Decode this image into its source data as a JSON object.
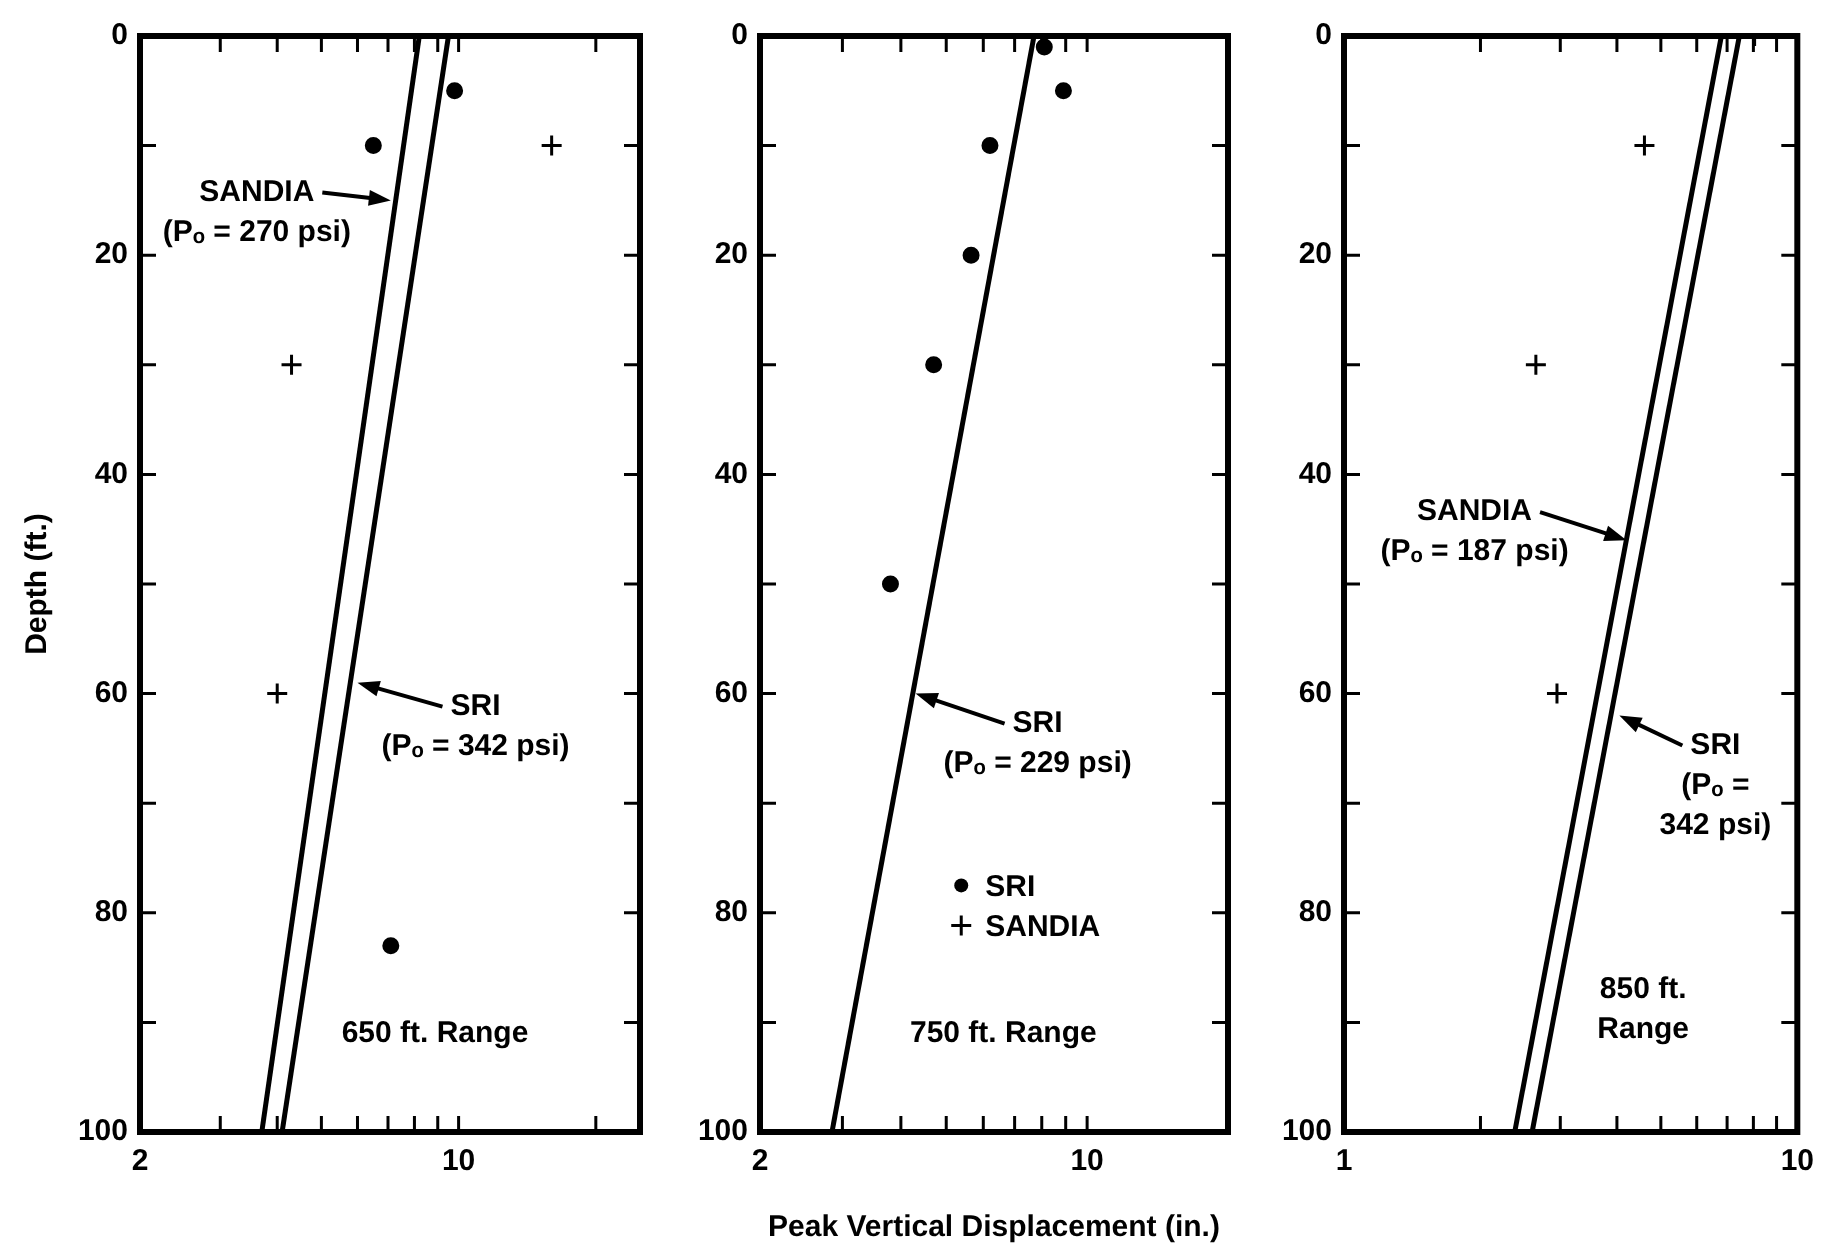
{
  "chart_data": [
    {
      "type": "line",
      "ylabel": "Depth (ft.)",
      "log": "x",
      "xlim": [
        2,
        25
      ],
      "xticks": [
        2,
        {
          "value": 3,
          "label": null
        },
        {
          "value": 4,
          "label": null
        },
        {
          "value": 5,
          "label": null
        },
        {
          "value": 6,
          "label": null
        },
        {
          "value": 7,
          "label": null
        },
        {
          "value": 8,
          "label": null
        },
        {
          "value": 9,
          "label": null
        },
        10,
        {
          "value": 20,
          "label": null
        }
      ],
      "ylim": [
        100,
        0
      ],
      "yticks": [
        0,
        {
          "value": 10,
          "label": null
        },
        20,
        {
          "value": 30,
          "label": null
        },
        40,
        {
          "value": 50,
          "label": null
        },
        60,
        {
          "value": 70,
          "label": null
        },
        80,
        {
          "value": 90,
          "label": null
        },
        100
      ],
      "series": [
        {
          "type": "line",
          "color": "#000000",
          "x": [
            8.2,
            3.7
          ],
          "values": [
            0,
            100
          ],
          "marker": "none"
        },
        {
          "type": "line",
          "color": "#000000",
          "x": [
            9.5,
            4.1
          ],
          "values": [
            0,
            100
          ],
          "marker": "none"
        },
        {
          "type": "scatter",
          "color": "#000000",
          "x": [
            9.8,
            6.5,
            7.1
          ],
          "values": [
            5,
            10,
            83
          ],
          "marker": "circle"
        },
        {
          "type": "scatter",
          "color": "#000000",
          "x": [
            16,
            4.3,
            4.0
          ],
          "values": [
            10,
            30,
            60
          ],
          "marker": "cross"
        }
      ],
      "annotations": [
        {
          "text": "SANDIA\n(Pₒ = 270 psi)",
          "x": 7.1,
          "y": 15
        },
        {
          "text": "SRI\n(Pₒ = 342 psi)",
          "x": 6.0,
          "y": 59
        },
        "650 ft. Range"
      ]
    },
    {
      "type": "line",
      "xlabel": "Peak Vertical Displacement (in.)",
      "log": "x",
      "legend": "bottom",
      "xlim": [
        2,
        20
      ],
      "xticks": [
        2,
        {
          "value": 3,
          "label": null
        },
        {
          "value": 4,
          "label": null
        },
        {
          "value": 5,
          "label": null
        },
        {
          "value": 6,
          "label": null
        },
        {
          "value": 7,
          "label": null
        },
        {
          "value": 8,
          "label": null
        },
        {
          "value": 9,
          "label": null
        },
        10
      ],
      "ylim": [
        100,
        0
      ],
      "yticks": [
        0,
        {
          "value": 10,
          "label": null
        },
        20,
        {
          "value": 30,
          "label": null
        },
        40,
        {
          "value": 50,
          "label": null
        },
        60,
        {
          "value": 70,
          "label": null
        },
        80,
        {
          "value": 90,
          "label": null
        },
        100
      ],
      "series": [
        {
          "type": "line",
          "color": "#000000",
          "x": [
            7.7,
            2.85
          ],
          "values": [
            0,
            100
          ],
          "marker": "none"
        },
        {
          "type": "scatter",
          "name": "SRI",
          "color": "#000000",
          "x": [
            8.1,
            8.9,
            6.2,
            5.65,
            4.7,
            3.8
          ],
          "values": [
            1,
            5,
            10,
            20,
            30,
            50
          ],
          "marker": "circle"
        },
        {
          "type": "scatter",
          "name": "SANDIA",
          "color": "#000000",
          "marker": "cross"
        }
      ],
      "annotations": [
        {
          "text": "SRI\n(Pₒ = 229 psi)",
          "x": 4.3,
          "y": 60
        },
        "750 ft. Range"
      ]
    },
    {
      "type": "line",
      "log": "x",
      "xlim": [
        1,
        10
      ],
      "xticks": [
        1,
        {
          "value": 2,
          "label": null
        },
        {
          "value": 3,
          "label": null
        },
        {
          "value": 4,
          "label": null
        },
        {
          "value": 5,
          "label": null
        },
        {
          "value": 6,
          "label": null
        },
        {
          "value": 7,
          "label": null
        },
        {
          "value": 8,
          "label": null
        },
        {
          "value": 9,
          "label": null
        },
        10
      ],
      "ylim": [
        100,
        0
      ],
      "yticks": [
        0,
        {
          "value": 10,
          "label": null
        },
        20,
        {
          "value": 30,
          "label": null
        },
        40,
        {
          "value": 50,
          "label": null
        },
        60,
        {
          "value": 70,
          "label": null
        },
        80,
        {
          "value": 90,
          "label": null
        },
        100
      ],
      "series": [
        {
          "type": "line",
          "color": "#000000",
          "x": [
            6.8,
            2.38
          ],
          "values": [
            0,
            100
          ],
          "marker": "none"
        },
        {
          "type": "line",
          "color": "#000000",
          "x": [
            7.45,
            2.6
          ],
          "values": [
            0,
            100
          ],
          "marker": "none"
        },
        {
          "type": "scatter",
          "color": "#000000",
          "x": [
            8.05,
            4.6,
            2.65,
            2.95
          ],
          "values": [
            0,
            10,
            30,
            60
          ],
          "marker": "cross"
        }
      ],
      "annotations": [
        {
          "text": "SANDIA\n(Pₒ = 187 psi)",
          "x": 4.2,
          "y": 46
        },
        {
          "text": "SRI\n(Pₒ =\n342 psi)",
          "x": 4.05,
          "y": 62
        },
        "850 ft.\nRange"
      ]
    }
  ]
}
